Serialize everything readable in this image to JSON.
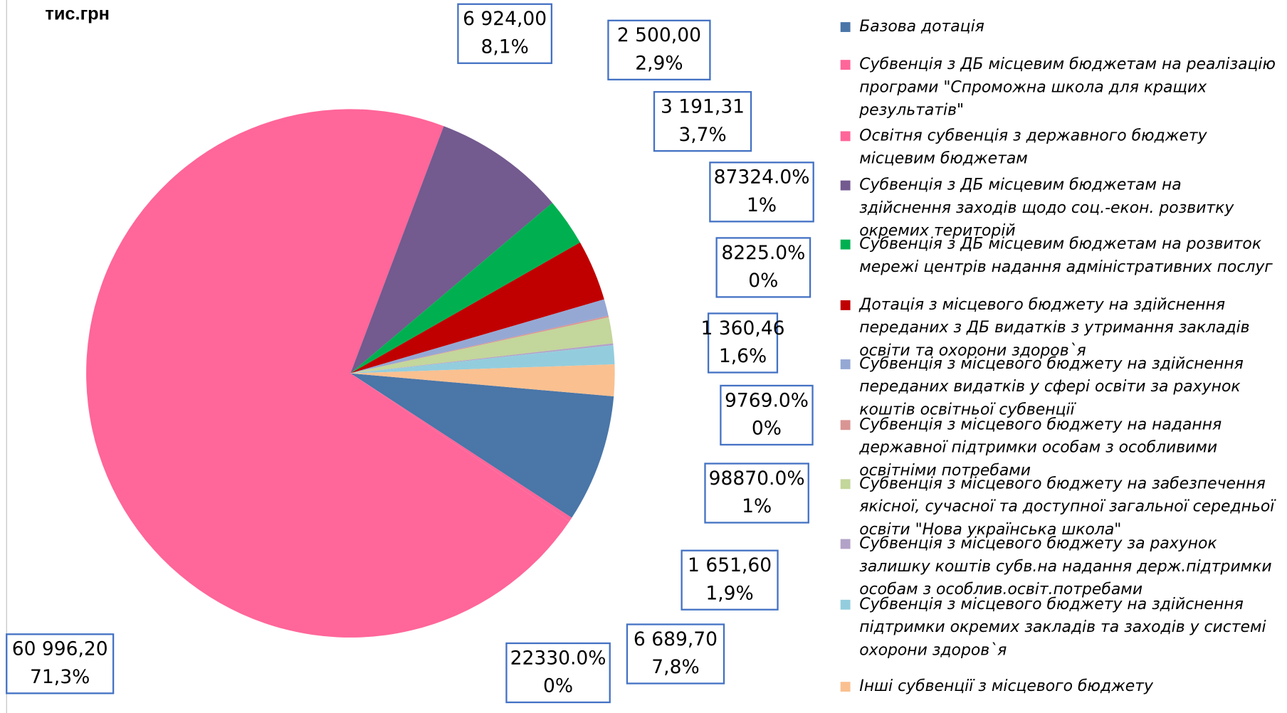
{
  "chart_data": {
    "type": "pie",
    "title": "тис.грн",
    "categories": [
      "Базова дотація",
      "Субвенція з ДБ місцевим бюджетам на реалізацію програми \"Спроможна школа для кращих результатів\"",
      "Освітня субвенція з державного бюджету місцевим бюджетам",
      "Субвенція з ДБ місцевим бюджетам на здійснення заходів щодо соц.-екон. розвитку окремих територій",
      "Субвенція з ДБ місцевим бюджетам на розвиток мережі центрів надання адміністративних послуг",
      "Дотація з місцевого бюджету на здійснення переданих з ДБ видатків з утримання закладів освіти та охорони здоров`я",
      "Субвенція з місцевого бюджету на здійснення переданих видатків у сфері освіти за рахунок коштів освітньої субвенції",
      "Субвенція з місцевого бюджету на надання державної підтримки особам з особливими освітніми потребами",
      "Субвенція з місцевого бюджету на забезпечення якісної, сучасної та доступної загальної середньої освіти \"Нова українська школа\"",
      "Субвенція з місцевого бюджету за рахунок залишку коштів субв.на надання держ.підтримки особам з особлив.освіт.потребами",
      "Субвенція з місцевого бюджету на здійснення підтримки окремих закладів та заходів у системі охорони здоров`я",
      "Інші субвенції з місцевого бюджету"
    ],
    "values": [
      6689.7,
      223.3,
      60996.2,
      6924.0,
      2500.0,
      3191.31,
      873.24,
      82.25,
      1360.46,
      97.69,
      988.7,
      1651.6
    ],
    "value_labels": [
      "6 689,70",
      "22330.0%",
      "60 996,20",
      "6 924,00",
      "2 500,00",
      "3 191,31",
      "87324.0%",
      "8225.0%",
      "1 360,46",
      "9769.0%",
      "98870.0%",
      "1 651,60"
    ],
    "percents": [
      7.8,
      0,
      71.3,
      8.1,
      2.9,
      3.7,
      1,
      0,
      1.6,
      0,
      1,
      1.9
    ],
    "percent_labels": [
      "7,8%",
      "0%",
      "71,3%",
      "8,1%",
      "2,9%",
      "3,7%",
      "1%",
      "0%",
      "1,6%",
      "0%",
      "1%",
      "1,9%"
    ],
    "colors": [
      "#4a76a8",
      "#ff6699",
      "#ff6699",
      "#735a8f",
      "#00b050",
      "#c00000",
      "#95a8d4",
      "#d99594",
      "#c3d69b",
      "#b3a2c7",
      "#93cddd",
      "#fac090"
    ]
  }
}
